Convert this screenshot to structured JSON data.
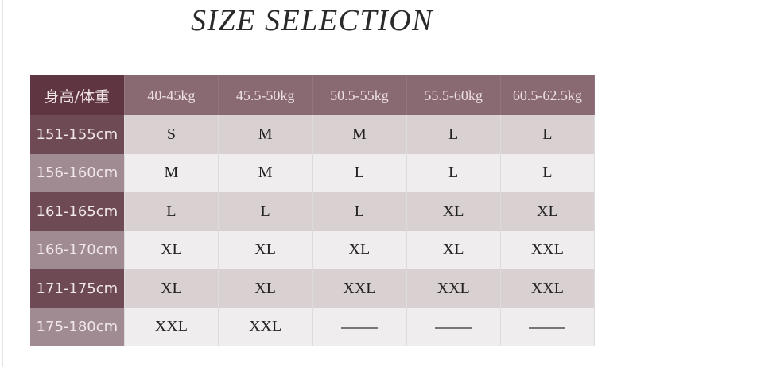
{
  "title": "SIZE SELECTION",
  "table": {
    "corner": "身高/体重",
    "columns": [
      "40-45kg",
      "45.5-50kg",
      "50.5-55kg",
      "55.5-60kg",
      "60.5-62.5kg"
    ],
    "rows": [
      {
        "height": "151-155cm",
        "sizes": [
          "S",
          "M",
          "M",
          "L",
          "L"
        ]
      },
      {
        "height": "156-160cm",
        "sizes": [
          "M",
          "M",
          "L",
          "L",
          "L"
        ]
      },
      {
        "height": "161-165cm",
        "sizes": [
          "L",
          "L",
          "L",
          "XL",
          "XL"
        ]
      },
      {
        "height": "166-170cm",
        "sizes": [
          "XL",
          "XL",
          "XL",
          "XL",
          "XXL"
        ]
      },
      {
        "height": "171-175cm",
        "sizes": [
          "XL",
          "XL",
          "XXL",
          "XXL",
          "XXL"
        ]
      },
      {
        "height": "175-180cm",
        "sizes": [
          "XXL",
          "XXL",
          "—",
          "—",
          "—"
        ]
      }
    ]
  },
  "colors": {
    "header_corner": "#5e3540",
    "header": "#8a6a72",
    "row_label_dark": "#6e4a55",
    "row_label_light": "#a08b92",
    "cell_dark": "#d9d0d2",
    "cell_light": "#efeded"
  }
}
